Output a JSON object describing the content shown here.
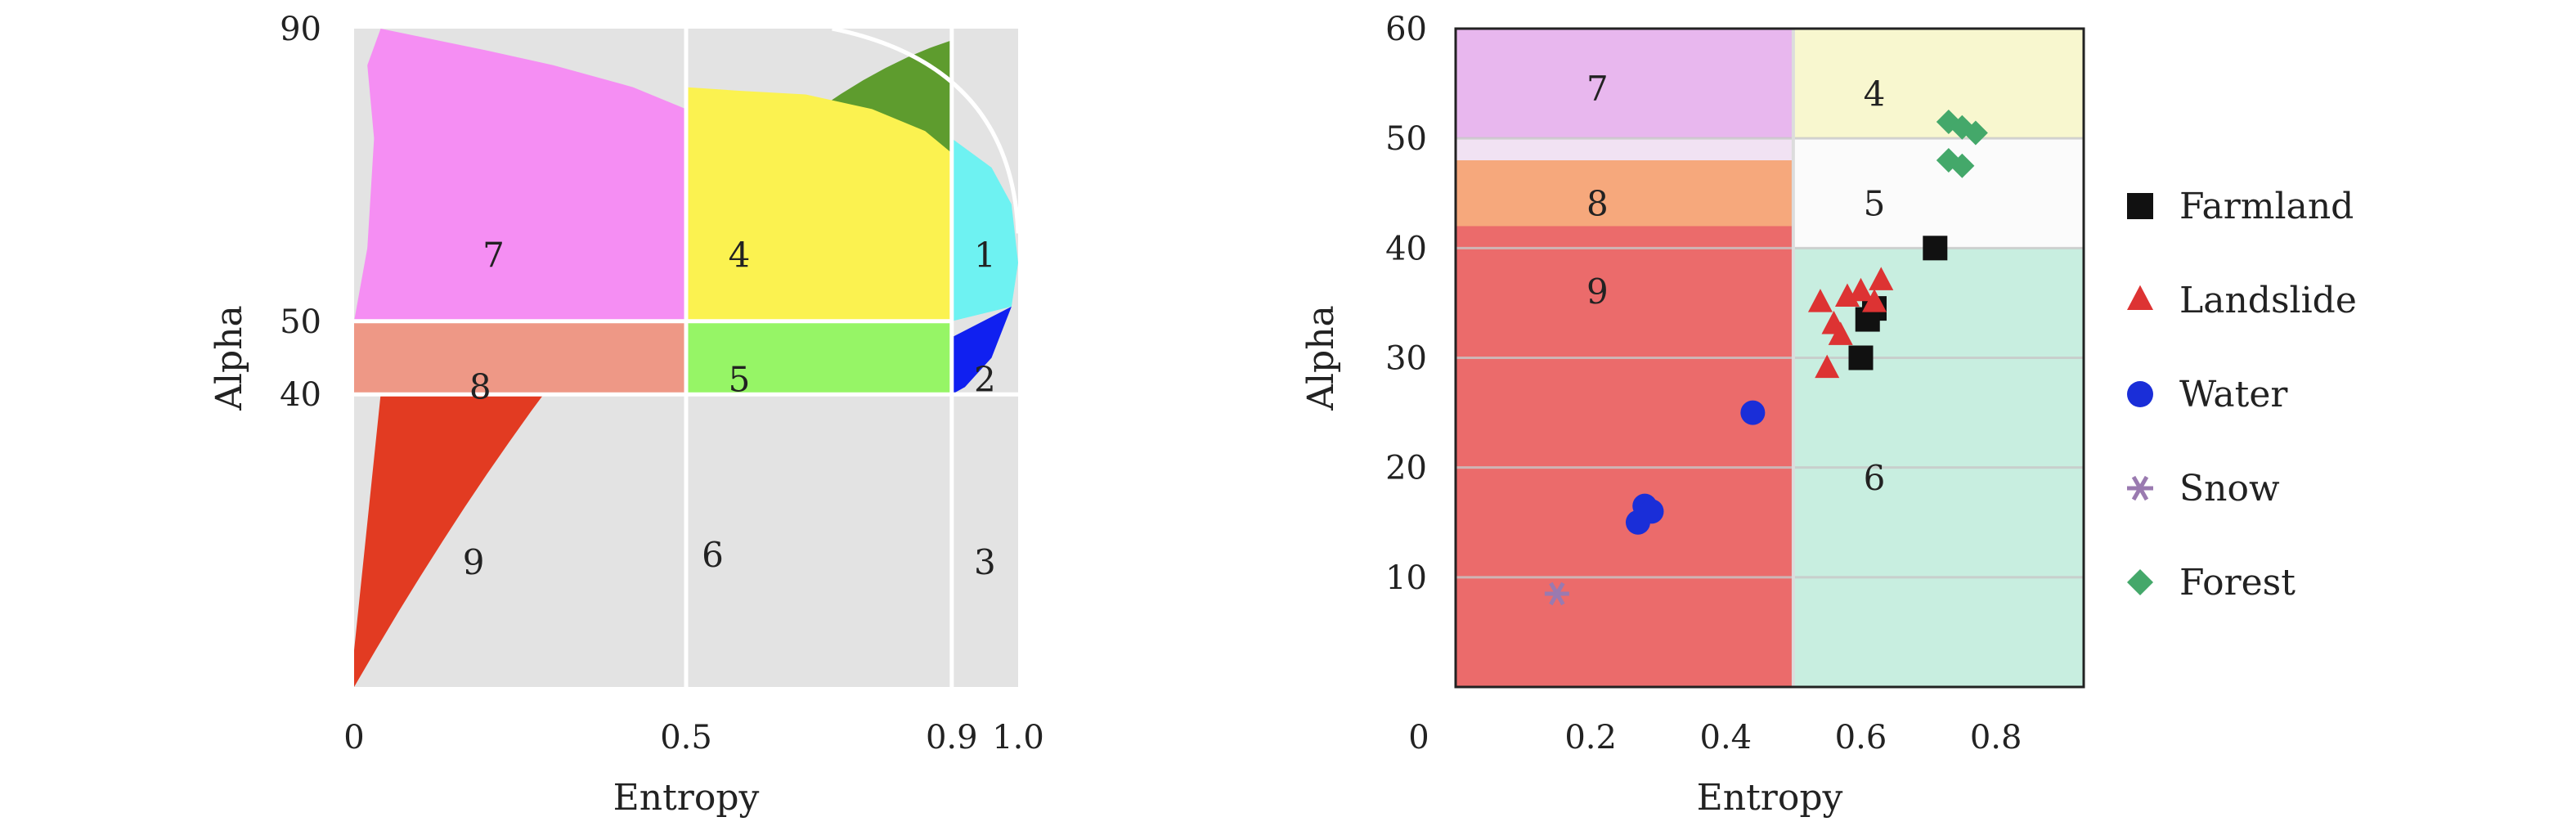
{
  "chart_data": [
    {
      "type": "scatter",
      "xlabel": "Entropy",
      "ylabel": "Alpha",
      "xlim": [
        0,
        1.0
      ],
      "ylim": [
        0,
        90
      ],
      "xticks": [
        {
          "v": 0,
          "label": "0"
        },
        {
          "v": 0.5,
          "label": "0.5"
        },
        {
          "v": 0.9,
          "label": "0.9"
        },
        {
          "v": 1.0,
          "label": "1.0"
        }
      ],
      "yticks": [
        {
          "v": 90,
          "label": "90"
        },
        {
          "v": 50,
          "label": "50"
        },
        {
          "v": 40,
          "label": "40"
        }
      ],
      "boundaries": {
        "x": [
          0.5,
          0.9
        ],
        "y": [
          50,
          40
        ]
      },
      "zones": [
        {
          "label": "1",
          "color": "#6ef2f2",
          "x": 0.95,
          "y": 59
        },
        {
          "label": "2",
          "color": "#1020f0",
          "x": 0.95,
          "y": 42
        },
        {
          "label": "3",
          "color": "#e3e3e3",
          "x": 0.95,
          "y": 17
        },
        {
          "label": "4",
          "color": "#fbf250",
          "x": 0.58,
          "y": 59
        },
        {
          "label": "5",
          "color": "#96f566",
          "x": 0.58,
          "y": 42
        },
        {
          "label": "6",
          "color": "#5e9c2e",
          "x": 0.54,
          "y": 18
        },
        {
          "label": "7",
          "color": "#f58ef3",
          "x": 0.21,
          "y": 59
        },
        {
          "label": "8",
          "color": "#ee9886",
          "x": 0.19,
          "y": 41
        },
        {
          "label": "9",
          "color": "#e23b22",
          "x": 0.18,
          "y": 17
        }
      ]
    },
    {
      "type": "scatter",
      "xlabel": "Entropy",
      "ylabel": "Alpha",
      "xlim": [
        0,
        0.93
      ],
      "ylim": [
        0,
        60
      ],
      "xticks": [
        {
          "v": 0,
          "label": "0"
        },
        {
          "v": 0.2,
          "label": "0.2"
        },
        {
          "v": 0.4,
          "label": "0.4"
        },
        {
          "v": 0.6,
          "label": "0.6"
        },
        {
          "v": 0.8,
          "label": "0.8"
        }
      ],
      "yticks": [
        {
          "v": 10,
          "label": "10"
        },
        {
          "v": 20,
          "label": "20"
        },
        {
          "v": 30,
          "label": "30"
        },
        {
          "v": 40,
          "label": "40"
        },
        {
          "v": 50,
          "label": "50"
        },
        {
          "v": 60,
          "label": "60"
        }
      ],
      "regions": [
        {
          "label": "7",
          "color": "#e8b7ee",
          "x0": 0,
          "x1": 0.5,
          "y0": 50,
          "y1": 60,
          "lx": 0.21,
          "ly": 54.5
        },
        {
          "label": "8",
          "color": "#f6a87c",
          "x0": 0,
          "x1": 0.5,
          "y0": 42,
          "y1": 48,
          "lx": 0.21,
          "ly": 44
        },
        {
          "label": "9",
          "color": "#eb6b6b",
          "x0": 0,
          "x1": 0.5,
          "y0": 0,
          "y1": 42,
          "lx": 0.21,
          "ly": 36
        },
        {
          "label": "4",
          "color": "#f8f7cf",
          "x0": 0.5,
          "x1": 0.93,
          "y0": 50,
          "y1": 60,
          "lx": 0.62,
          "ly": 54
        },
        {
          "label": "5",
          "color": "#fbfbfb",
          "x0": 0.5,
          "x1": 0.93,
          "y0": 40,
          "y1": 50,
          "lx": 0.62,
          "ly": 44
        },
        {
          "label": "6",
          "color": "#c8eee0",
          "x0": 0.5,
          "x1": 0.93,
          "y0": 0,
          "y1": 40,
          "lx": 0.62,
          "ly": 19
        }
      ],
      "series": [
        {
          "name": "Farmland",
          "marker": "square",
          "color": "#111111",
          "points": [
            [
              0.71,
              40
            ],
            [
              0.62,
              34.5
            ],
            [
              0.61,
              33.5
            ],
            [
              0.6,
              30
            ]
          ]
        },
        {
          "name": "Landslide",
          "marker": "triangle",
          "color": "#dd3333",
          "points": [
            [
              0.54,
              35
            ],
            [
              0.56,
              33
            ],
            [
              0.57,
              32
            ],
            [
              0.58,
              35.5
            ],
            [
              0.6,
              36
            ],
            [
              0.62,
              35
            ],
            [
              0.63,
              37
            ],
            [
              0.55,
              29
            ]
          ]
        },
        {
          "name": "Water",
          "marker": "circle",
          "color": "#1a2ed8",
          "points": [
            [
              0.44,
              25
            ],
            [
              0.28,
              16.5
            ],
            [
              0.29,
              16
            ],
            [
              0.27,
              15
            ]
          ]
        },
        {
          "name": "Snow",
          "marker": "star",
          "color": "#9a7ab0",
          "points": [
            [
              0.15,
              8.5
            ]
          ]
        },
        {
          "name": "Forest",
          "marker": "diamond",
          "color": "#44a86a",
          "points": [
            [
              0.73,
              51.5
            ],
            [
              0.75,
              51
            ],
            [
              0.77,
              50.5
            ],
            [
              0.73,
              48
            ],
            [
              0.75,
              47.5
            ]
          ]
        }
      ]
    }
  ]
}
